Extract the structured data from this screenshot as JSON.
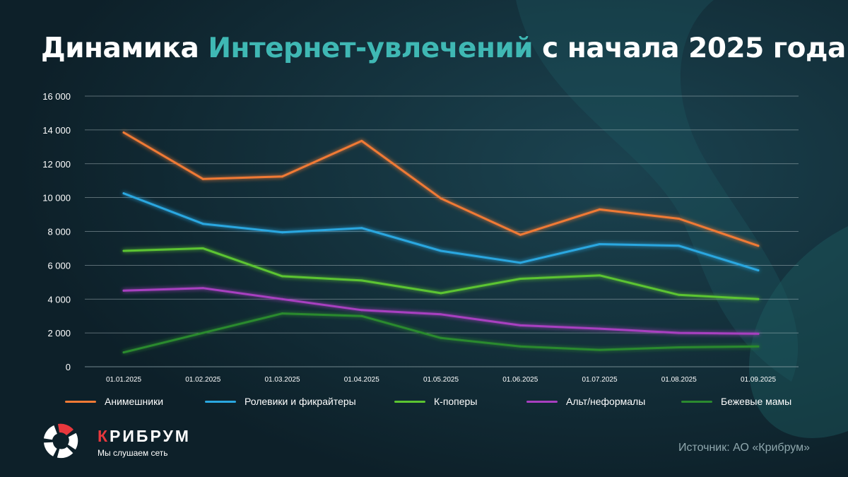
{
  "title": {
    "part1": "Динамика ",
    "accent": "Интернет-увлечений",
    "part2": " с начала 2025 года"
  },
  "colors": {
    "background": "#0f2530",
    "accent": "#3fb8b4",
    "brand_red": "#e8383d"
  },
  "chart_data": {
    "type": "line",
    "title": "Динамика Интернет-увлечений с начала 2025 года",
    "xlabel": "",
    "ylabel": "",
    "ylim": [
      0,
      16000
    ],
    "grid": true,
    "y_ticks": [
      "0",
      "2 000",
      "4 000",
      "6 000",
      "8 000",
      "10 000",
      "12 000",
      "14 000",
      "16 000"
    ],
    "categories": [
      "01.01.2025",
      "01.02.2025",
      "01.03.2025",
      "01.04.2025",
      "01.05.2025",
      "01.06.2025",
      "01.07.2025",
      "01.08.2025",
      "01.09.2025"
    ],
    "series": [
      {
        "name": "Анимешники",
        "color": "#f07a35",
        "values": [
          13850,
          11100,
          11250,
          13350,
          9950,
          7800,
          9300,
          8750,
          7150
        ]
      },
      {
        "name": "Ролевики и фикрайтеры",
        "color": "#2aa7e0",
        "values": [
          10250,
          8450,
          7950,
          8200,
          6850,
          6150,
          7250,
          7150,
          5700
        ]
      },
      {
        "name": "К-поперы",
        "color": "#5bc431",
        "values": [
          6850,
          7000,
          5350,
          5100,
          4350,
          5200,
          5400,
          4250,
          4000
        ]
      },
      {
        "name": "Альт/неформалы",
        "color": "#a83fc0",
        "values": [
          4500,
          4650,
          4000,
          3350,
          3100,
          2450,
          2250,
          2000,
          1950
        ]
      },
      {
        "name": "Бежевые мамы",
        "color": "#2b8a2f",
        "values": [
          850,
          2000,
          3150,
          3000,
          1700,
          1200,
          1000,
          1150,
          1200
        ]
      }
    ],
    "legend_position": "bottom"
  },
  "logo": {
    "brand_first": "К",
    "brand_rest": "РИБРУМ",
    "tagline": "Мы слушаем сеть"
  },
  "source": "Источник: АО «Крибрум»"
}
